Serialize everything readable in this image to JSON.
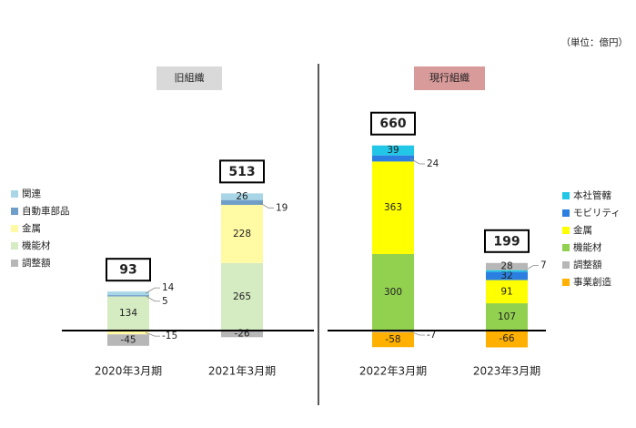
{
  "unit": "（単位：億円）",
  "chart_data": [
    {
      "type": "bar",
      "stacked": true,
      "label": "旧組織",
      "label_color": "#d9d9d9",
      "categories": [
        "2020年3月期",
        "2021年3月期"
      ],
      "totals": [
        93,
        513
      ],
      "series": [
        {
          "name": "関連",
          "color": "#a9d6e6",
          "values": [
            14,
            26
          ]
        },
        {
          "name": "自動車部品",
          "color": "#6f9fc9",
          "values": [
            5,
            19
          ]
        },
        {
          "name": "金属",
          "color": "#fffaa3",
          "values": [
            -15,
            228
          ]
        },
        {
          "name": "機能材",
          "color": "#d5ebc2",
          "values": [
            134,
            265
          ]
        },
        {
          "name": "調整額",
          "color": "#b7b7b7",
          "values": [
            -45,
            -26
          ]
        }
      ]
    },
    {
      "type": "bar",
      "stacked": true,
      "label": "現行組織",
      "label_color": "#d99a9a",
      "categories": [
        "2022年3月期",
        "2023年3月期"
      ],
      "totals": [
        660,
        199
      ],
      "series": [
        {
          "name": "本社管轄",
          "color": "#22c6e6",
          "values": [
            39,
            7
          ]
        },
        {
          "name": "モビリティ",
          "color": "#2a7fe0",
          "values": [
            24,
            32
          ]
        },
        {
          "name": "金属",
          "color": "#ffff00",
          "values": [
            363,
            91
          ]
        },
        {
          "name": "機能材",
          "color": "#92d050",
          "values": [
            300,
            107
          ]
        },
        {
          "name": "調整額",
          "color": "#b7b7b7",
          "values": [
            -7,
            28
          ]
        },
        {
          "name": "事業創造",
          "color": "#ffb000",
          "values": [
            -58,
            -66
          ]
        }
      ]
    }
  ]
}
